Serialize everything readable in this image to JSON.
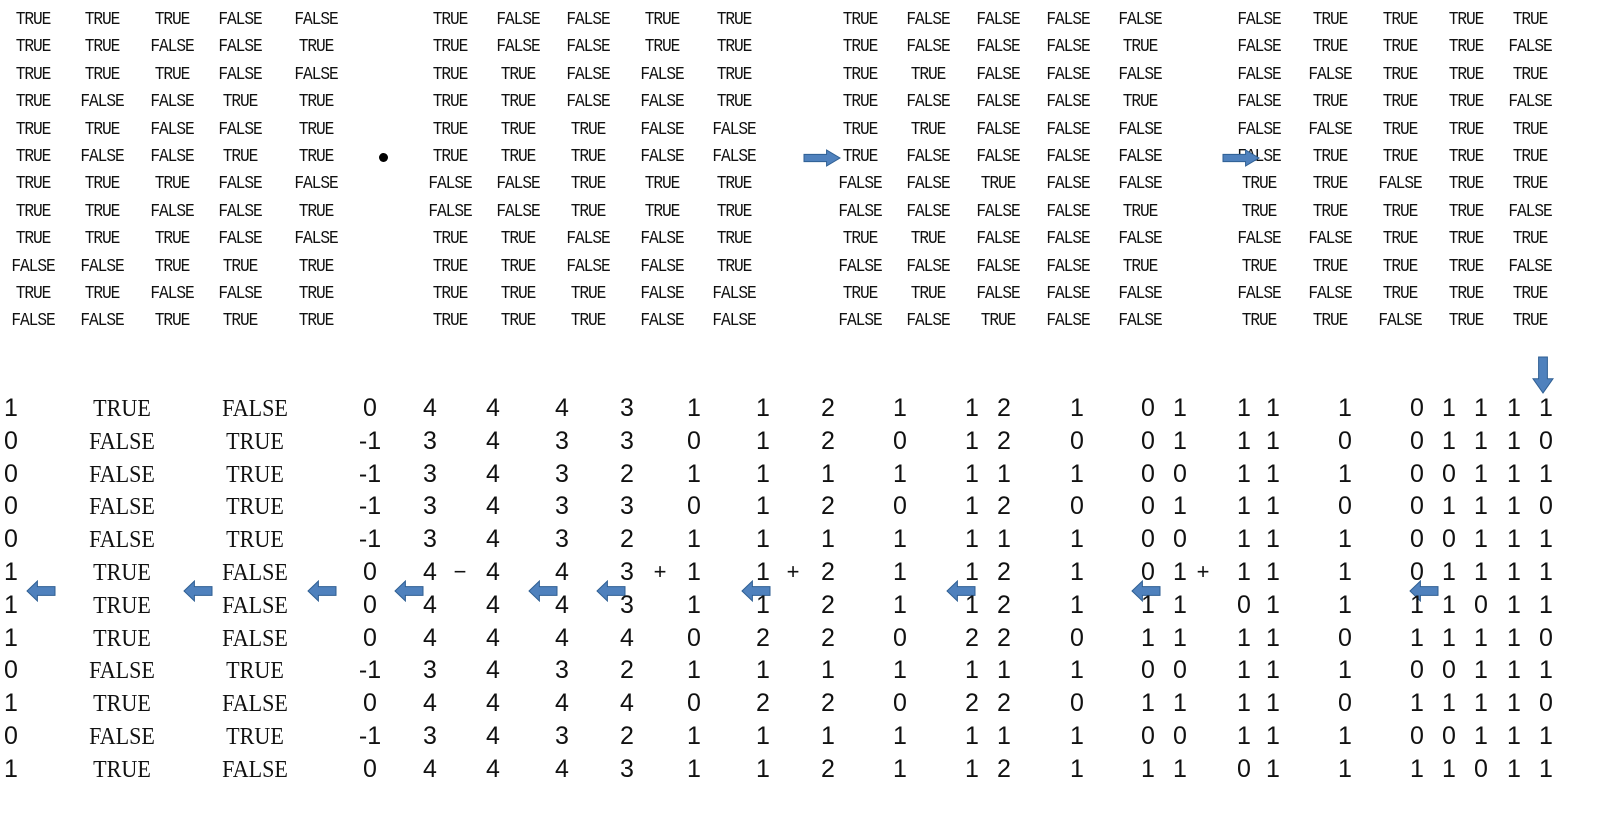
{
  "colors": {
    "arrow_fill": "#4f81bd",
    "arrow_stroke": "#2f5f93",
    "text": "#111111"
  },
  "top": {
    "matrix_a": [
      [
        "TRUE",
        "TRUE",
        "TRUE",
        "FALSE",
        "FALSE"
      ],
      [
        "TRUE",
        "TRUE",
        "FALSE",
        "FALSE",
        "TRUE"
      ],
      [
        "TRUE",
        "TRUE",
        "TRUE",
        "FALSE",
        "FALSE"
      ],
      [
        "TRUE",
        "FALSE",
        "FALSE",
        "TRUE",
        "TRUE"
      ],
      [
        "TRUE",
        "TRUE",
        "FALSE",
        "FALSE",
        "TRUE"
      ],
      [
        "TRUE",
        "FALSE",
        "FALSE",
        "TRUE",
        "TRUE"
      ],
      [
        "TRUE",
        "TRUE",
        "TRUE",
        "FALSE",
        "FALSE"
      ],
      [
        "TRUE",
        "TRUE",
        "FALSE",
        "FALSE",
        "TRUE"
      ],
      [
        "TRUE",
        "TRUE",
        "TRUE",
        "FALSE",
        "FALSE"
      ],
      [
        "FALSE",
        "FALSE",
        "TRUE",
        "TRUE",
        "TRUE"
      ],
      [
        "TRUE",
        "TRUE",
        "FALSE",
        "FALSE",
        "TRUE"
      ],
      [
        "FALSE",
        "FALSE",
        "TRUE",
        "TRUE",
        "TRUE"
      ]
    ],
    "operator_symbol": "•",
    "matrix_b": [
      [
        "TRUE",
        "FALSE",
        "FALSE",
        "TRUE",
        "TRUE"
      ],
      [
        "TRUE",
        "FALSE",
        "FALSE",
        "TRUE",
        "TRUE"
      ],
      [
        "TRUE",
        "TRUE",
        "FALSE",
        "FALSE",
        "TRUE"
      ],
      [
        "TRUE",
        "TRUE",
        "FALSE",
        "FALSE",
        "TRUE"
      ],
      [
        "TRUE",
        "TRUE",
        "TRUE",
        "FALSE",
        "FALSE"
      ],
      [
        "TRUE",
        "TRUE",
        "TRUE",
        "FALSE",
        "FALSE"
      ],
      [
        "FALSE",
        "FALSE",
        "TRUE",
        "TRUE",
        "TRUE"
      ],
      [
        "FALSE",
        "FALSE",
        "TRUE",
        "TRUE",
        "TRUE"
      ],
      [
        "TRUE",
        "TRUE",
        "FALSE",
        "FALSE",
        "TRUE"
      ],
      [
        "TRUE",
        "TRUE",
        "FALSE",
        "FALSE",
        "TRUE"
      ],
      [
        "TRUE",
        "TRUE",
        "TRUE",
        "FALSE",
        "FALSE"
      ],
      [
        "TRUE",
        "TRUE",
        "TRUE",
        "FALSE",
        "FALSE"
      ]
    ],
    "matrix_c": [
      [
        "TRUE",
        "FALSE",
        "FALSE",
        "FALSE",
        "FALSE"
      ],
      [
        "TRUE",
        "FALSE",
        "FALSE",
        "FALSE",
        "TRUE"
      ],
      [
        "TRUE",
        "TRUE",
        "FALSE",
        "FALSE",
        "FALSE"
      ],
      [
        "TRUE",
        "FALSE",
        "FALSE",
        "FALSE",
        "TRUE"
      ],
      [
        "TRUE",
        "TRUE",
        "FALSE",
        "FALSE",
        "FALSE"
      ],
      [
        "TRUE",
        "FALSE",
        "FALSE",
        "FALSE",
        "FALSE"
      ],
      [
        "FALSE",
        "FALSE",
        "TRUE",
        "FALSE",
        "FALSE"
      ],
      [
        "FALSE",
        "FALSE",
        "FALSE",
        "FALSE",
        "TRUE"
      ],
      [
        "TRUE",
        "TRUE",
        "FALSE",
        "FALSE",
        "FALSE"
      ],
      [
        "FALSE",
        "FALSE",
        "FALSE",
        "FALSE",
        "TRUE"
      ],
      [
        "TRUE",
        "TRUE",
        "FALSE",
        "FALSE",
        "FALSE"
      ],
      [
        "FALSE",
        "FALSE",
        "TRUE",
        "FALSE",
        "FALSE"
      ]
    ],
    "matrix_d": [
      [
        "FALSE",
        "TRUE",
        "TRUE",
        "TRUE",
        "TRUE"
      ],
      [
        "FALSE",
        "TRUE",
        "TRUE",
        "TRUE",
        "FALSE"
      ],
      [
        "FALSE",
        "FALSE",
        "TRUE",
        "TRUE",
        "TRUE"
      ],
      [
        "FALSE",
        "TRUE",
        "TRUE",
        "TRUE",
        "FALSE"
      ],
      [
        "FALSE",
        "FALSE",
        "TRUE",
        "TRUE",
        "TRUE"
      ],
      [
        "FALSE",
        "TRUE",
        "TRUE",
        "TRUE",
        "TRUE"
      ],
      [
        "TRUE",
        "TRUE",
        "FALSE",
        "TRUE",
        "TRUE"
      ],
      [
        "TRUE",
        "TRUE",
        "TRUE",
        "TRUE",
        "FALSE"
      ],
      [
        "FALSE",
        "FALSE",
        "TRUE",
        "TRUE",
        "TRUE"
      ],
      [
        "TRUE",
        "TRUE",
        "TRUE",
        "TRUE",
        "FALSE"
      ],
      [
        "FALSE",
        "FALSE",
        "TRUE",
        "TRUE",
        "TRUE"
      ],
      [
        "TRUE",
        "TRUE",
        "FALSE",
        "TRUE",
        "TRUE"
      ]
    ]
  },
  "bottom": {
    "rows": [
      [
        "1",
        "TRUE",
        "FALSE",
        "0",
        "4",
        "4",
        "4",
        "3",
        "1",
        "1",
        "2",
        "1",
        "1",
        "2",
        "1",
        "0",
        "1",
        "1",
        "1",
        "1",
        "0",
        "1",
        "1",
        "1",
        "1"
      ],
      [
        "0",
        "FALSE",
        "TRUE",
        "-1",
        "3",
        "4",
        "3",
        "3",
        "0",
        "1",
        "2",
        "0",
        "1",
        "2",
        "0",
        "0",
        "1",
        "1",
        "1",
        "0",
        "0",
        "1",
        "1",
        "1",
        "0"
      ],
      [
        "0",
        "FALSE",
        "TRUE",
        "-1",
        "3",
        "4",
        "3",
        "2",
        "1",
        "1",
        "1",
        "1",
        "1",
        "1",
        "1",
        "0",
        "0",
        "1",
        "1",
        "1",
        "0",
        "0",
        "1",
        "1",
        "1"
      ],
      [
        "0",
        "FALSE",
        "TRUE",
        "-1",
        "3",
        "4",
        "3",
        "3",
        "0",
        "1",
        "2",
        "0",
        "1",
        "2",
        "0",
        "0",
        "1",
        "1",
        "1",
        "0",
        "0",
        "1",
        "1",
        "1",
        "0"
      ],
      [
        "0",
        "FALSE",
        "TRUE",
        "-1",
        "3",
        "4",
        "3",
        "2",
        "1",
        "1",
        "1",
        "1",
        "1",
        "1",
        "1",
        "0",
        "0",
        "1",
        "1",
        "1",
        "0",
        "0",
        "1",
        "1",
        "1"
      ],
      [
        "1",
        "TRUE",
        "FALSE",
        "0",
        "4",
        "4",
        "4",
        "3",
        "1",
        "1",
        "2",
        "1",
        "1",
        "2",
        "1",
        "0",
        "1",
        "1",
        "1",
        "1",
        "0",
        "1",
        "1",
        "1",
        "1"
      ],
      [
        "1",
        "TRUE",
        "FALSE",
        "0",
        "4",
        "4",
        "4",
        "3",
        "1",
        "1",
        "2",
        "1",
        "1",
        "2",
        "1",
        "1",
        "1",
        "0",
        "1",
        "1",
        "1",
        "1",
        "0",
        "1",
        "1"
      ],
      [
        "1",
        "TRUE",
        "FALSE",
        "0",
        "4",
        "4",
        "4",
        "4",
        "0",
        "2",
        "2",
        "0",
        "2",
        "2",
        "0",
        "1",
        "1",
        "1",
        "1",
        "0",
        "1",
        "1",
        "1",
        "1",
        "0"
      ],
      [
        "0",
        "FALSE",
        "TRUE",
        "-1",
        "3",
        "4",
        "3",
        "2",
        "1",
        "1",
        "1",
        "1",
        "1",
        "1",
        "1",
        "0",
        "0",
        "1",
        "1",
        "1",
        "0",
        "0",
        "1",
        "1",
        "1"
      ],
      [
        "1",
        "TRUE",
        "FALSE",
        "0",
        "4",
        "4",
        "4",
        "4",
        "0",
        "2",
        "2",
        "0",
        "2",
        "2",
        "0",
        "1",
        "1",
        "1",
        "1",
        "0",
        "1",
        "1",
        "1",
        "1",
        "0"
      ],
      [
        "0",
        "FALSE",
        "TRUE",
        "-1",
        "3",
        "4",
        "3",
        "2",
        "1",
        "1",
        "1",
        "1",
        "1",
        "1",
        "1",
        "0",
        "0",
        "1",
        "1",
        "1",
        "0",
        "0",
        "1",
        "1",
        "1"
      ],
      [
        "1",
        "TRUE",
        "FALSE",
        "0",
        "4",
        "4",
        "4",
        "3",
        "1",
        "1",
        "2",
        "1",
        "1",
        "2",
        "1",
        "1",
        "1",
        "0",
        "1",
        "1",
        "1",
        "1",
        "0",
        "1",
        "1"
      ]
    ],
    "operators": [
      "−",
      "+",
      "+",
      "+"
    ]
  }
}
